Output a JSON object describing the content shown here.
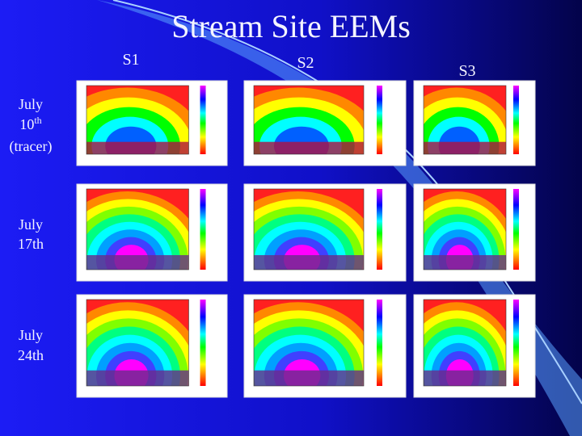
{
  "title": "Stream Site EEMs",
  "columns": [
    "S1",
    "S2",
    "S3"
  ],
  "rows": [
    {
      "line1": "July",
      "line2": "10",
      "line2_sup": "th",
      "line3": "(tracer)"
    },
    {
      "line1": "July",
      "line2": "17th"
    },
    {
      "line1": "July",
      "line2": "24th"
    }
  ]
}
